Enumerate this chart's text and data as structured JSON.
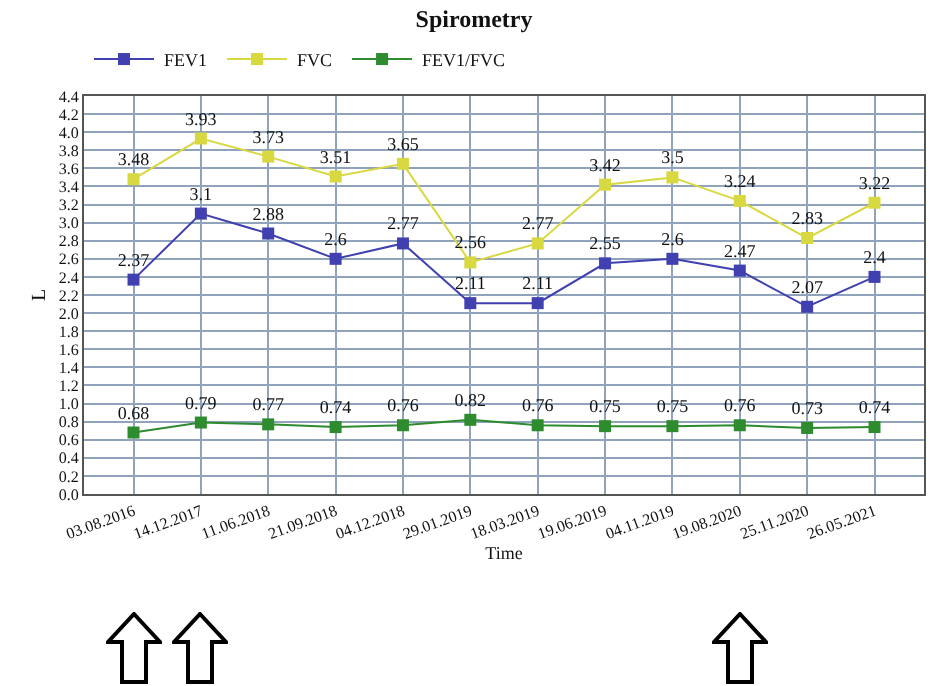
{
  "chart_data": {
    "type": "line",
    "title": "Spirometry",
    "xlabel": "Time",
    "ylabel": "L",
    "categories": [
      "03.08.2016",
      "14.12.2017",
      "11.06.2018",
      "21.09.2018",
      "04.12.2018",
      "29.01.2019",
      "18.03.2019",
      "19.06.2019",
      "04.11.2019",
      "19.08.2020",
      "25.11.2020",
      "26.05.2021"
    ],
    "series": [
      {
        "name": "FEV1",
        "color": "#4040b0",
        "values": [
          2.37,
          3.1,
          2.88,
          2.6,
          2.77,
          2.11,
          2.11,
          2.55,
          2.6,
          2.47,
          2.07,
          2.4
        ]
      },
      {
        "name": "FVC",
        "color": "#d8d840",
        "values": [
          3.48,
          3.93,
          3.73,
          3.51,
          3.65,
          2.56,
          2.77,
          3.42,
          3.5,
          3.24,
          2.83,
          3.22
        ]
      },
      {
        "name": "FEV1/FVC",
        "color": "#2e8b2e",
        "values": [
          0.68,
          0.79,
          0.77,
          0.74,
          0.76,
          0.82,
          0.76,
          0.75,
          0.75,
          0.76,
          0.73,
          0.74
        ]
      }
    ],
    "ylim": [
      0,
      4.4
    ],
    "yticks": [
      "0.0",
      "0.2",
      "0.4",
      "0.6",
      "0.8",
      "1.0",
      "1.2",
      "1.4",
      "1.6",
      "1.8",
      "2.0",
      "2.2",
      "2.4",
      "2.6",
      "2.8",
      "3.0",
      "3.2",
      "3.4",
      "3.6",
      "3.8",
      "4.0",
      "4.2",
      "4.4"
    ],
    "grid": true,
    "legend": "top left",
    "marker": "square",
    "line_style": "solid",
    "data_labels": true
  }
}
